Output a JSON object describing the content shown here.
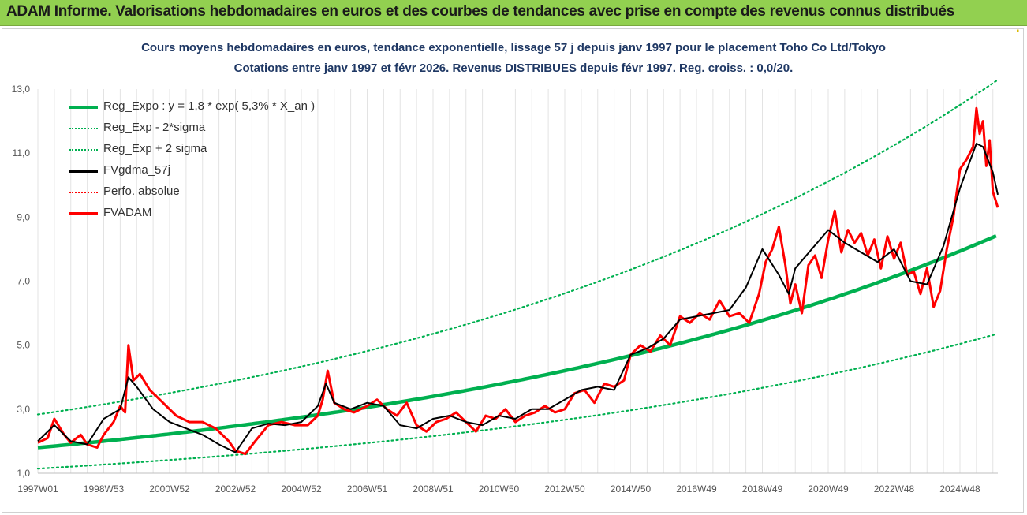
{
  "banner": {
    "title": "ADAM Informe. Valorisations hebdomadaires en euros et des courbes de tendances avec prise en compte des revenus connus distribués"
  },
  "chart_data": {
    "type": "line",
    "title": "Cours moyens hebdomadaires en euros, tendance exponentielle, lissage 57 j depuis janv 1997  pour le placement Toho Co Ltd/Tokyo",
    "subtitle": "Cotations entre janv 1997 et févr 2026. Revenus DISTRIBUES depuis févr 1997.  Reg. croiss. : 0,0/20.",
    "xlabel": "",
    "ylabel": "",
    "x_range": [
      1997.0,
      2026.15
    ],
    "ylim": [
      1.0,
      13.0
    ],
    "y_ticks": [
      "1,0",
      "3,0",
      "5,0",
      "7,0",
      "9,0",
      "11,0",
      "13,0"
    ],
    "y_tick_values": [
      1,
      3,
      5,
      7,
      9,
      11,
      13
    ],
    "x_tick_labels": [
      "1997W01",
      "1998W53",
      "2000W52",
      "2002W52",
      "2004W52",
      "2006W51",
      "2008W51",
      "2010W50",
      "2012W50",
      "2014W50",
      "2016W49",
      "2018W49",
      "2020W49",
      "2022W48",
      "2024W48"
    ],
    "x_tick_positions": [
      1997.0,
      1999.0,
      2001.0,
      2003.0,
      2005.0,
      2007.0,
      2009.0,
      2011.0,
      2013.0,
      2015.0,
      2017.0,
      2019.0,
      2021.0,
      2023.0,
      2025.0
    ],
    "grid": "vertical",
    "legend_position": "top-left",
    "colors": {
      "green": "#00b050",
      "black": "#000000",
      "red": "#ff0000"
    },
    "series": [
      {
        "name": "Reg_Expo : y = 1,8 * exp( 5,3% *  X_an )",
        "style": "solid-thick",
        "color": "#00b050",
        "regression": {
          "a": 1.8,
          "b": 0.053,
          "factor": 1.0
        }
      },
      {
        "name": "Reg_Exp - 2*sigma",
        "style": "dotted",
        "color": "#00b050",
        "regression": {
          "a": 1.8,
          "b": 0.053,
          "factor": 0.635
        }
      },
      {
        "name": "Reg_Exp + 2 sigma",
        "style": "dotted",
        "color": "#00b050",
        "regression": {
          "a": 1.8,
          "b": 0.053,
          "factor": 1.575
        }
      },
      {
        "name": "FVgdma_57j",
        "style": "solid",
        "color": "#000000",
        "x": [
          1997.0,
          1997.5,
          1998.0,
          1998.5,
          1999.0,
          1999.5,
          1999.75,
          2000.0,
          2000.5,
          2001.0,
          2001.5,
          2002.0,
          2002.5,
          2003.0,
          2003.5,
          2004.0,
          2004.5,
          2005.0,
          2005.5,
          2005.75,
          2006.0,
          2006.5,
          2007.0,
          2007.5,
          2008.0,
          2008.5,
          2009.0,
          2009.5,
          2010.0,
          2010.5,
          2011.0,
          2011.5,
          2012.0,
          2012.5,
          2013.0,
          2013.5,
          2014.0,
          2014.5,
          2015.0,
          2015.5,
          2016.0,
          2016.5,
          2017.0,
          2017.5,
          2018.0,
          2018.5,
          2019.0,
          2019.5,
          2019.8,
          2020.0,
          2020.5,
          2021.0,
          2021.5,
          2022.0,
          2022.5,
          2023.0,
          2023.5,
          2024.0,
          2024.5,
          2025.0,
          2025.5,
          2025.7,
          2026.0,
          2026.15
        ],
        "values": [
          2.0,
          2.5,
          2.0,
          1.9,
          2.7,
          3.0,
          4.0,
          3.7,
          3.0,
          2.6,
          2.4,
          2.2,
          1.9,
          1.65,
          2.4,
          2.55,
          2.5,
          2.6,
          3.1,
          3.8,
          3.2,
          3.0,
          3.2,
          3.1,
          2.5,
          2.4,
          2.7,
          2.8,
          2.6,
          2.5,
          2.8,
          2.7,
          3.0,
          3.0,
          3.3,
          3.6,
          3.7,
          3.6,
          4.7,
          4.9,
          5.2,
          5.8,
          5.9,
          6.0,
          6.1,
          6.8,
          8.0,
          7.2,
          6.6,
          7.4,
          8.0,
          8.6,
          8.2,
          7.9,
          7.6,
          8.0,
          7.0,
          6.9,
          8.1,
          9.9,
          11.3,
          11.2,
          10.4,
          9.7
        ]
      },
      {
        "name": "Perfo. absolue",
        "style": "dotted",
        "color": "#ff0000",
        "values": []
      },
      {
        "name": "FVADAM",
        "style": "solid-thick",
        "color": "#ff0000",
        "x": [
          1997.0,
          1997.3,
          1997.5,
          1997.8,
          1998.0,
          1998.3,
          1998.5,
          1998.8,
          1999.0,
          1999.3,
          1999.5,
          1999.65,
          1999.75,
          1999.9,
          2000.1,
          2000.4,
          2000.8,
          2001.2,
          2001.6,
          2002.0,
          2002.4,
          2002.8,
          2003.0,
          2003.3,
          2003.6,
          2004.0,
          2004.4,
          2004.8,
          2005.2,
          2005.5,
          2005.65,
          2005.8,
          2006.0,
          2006.3,
          2006.6,
          2007.0,
          2007.3,
          2007.6,
          2007.9,
          2008.2,
          2008.5,
          2008.8,
          2009.1,
          2009.4,
          2009.7,
          2010.0,
          2010.3,
          2010.6,
          2010.9,
          2011.2,
          2011.5,
          2011.8,
          2012.1,
          2012.4,
          2012.7,
          2013.0,
          2013.3,
          2013.6,
          2013.9,
          2014.2,
          2014.5,
          2014.8,
          2015.0,
          2015.3,
          2015.6,
          2015.9,
          2016.2,
          2016.5,
          2016.8,
          2017.1,
          2017.4,
          2017.7,
          2018.0,
          2018.3,
          2018.6,
          2018.9,
          2019.1,
          2019.3,
          2019.5,
          2019.7,
          2019.85,
          2020.0,
          2020.2,
          2020.4,
          2020.6,
          2020.8,
          2021.0,
          2021.2,
          2021.4,
          2021.6,
          2021.8,
          2022.0,
          2022.2,
          2022.4,
          2022.6,
          2022.8,
          2023.0,
          2023.2,
          2023.4,
          2023.6,
          2023.8,
          2024.0,
          2024.2,
          2024.4,
          2024.6,
          2024.8,
          2025.0,
          2025.2,
          2025.4,
          2025.5,
          2025.6,
          2025.7,
          2025.8,
          2025.9,
          2026.0,
          2026.15
        ],
        "values": [
          1.95,
          2.1,
          2.7,
          2.2,
          1.95,
          2.2,
          1.9,
          1.8,
          2.2,
          2.6,
          3.1,
          2.9,
          5.0,
          3.9,
          4.1,
          3.6,
          3.2,
          2.8,
          2.6,
          2.6,
          2.4,
          2.0,
          1.7,
          1.6,
          2.0,
          2.5,
          2.6,
          2.5,
          2.5,
          2.8,
          3.3,
          4.2,
          3.2,
          3.0,
          2.9,
          3.1,
          3.3,
          3.0,
          2.8,
          3.2,
          2.5,
          2.3,
          2.6,
          2.7,
          2.9,
          2.6,
          2.3,
          2.8,
          2.7,
          3.0,
          2.6,
          2.8,
          2.9,
          3.1,
          2.9,
          3.0,
          3.5,
          3.6,
          3.2,
          3.8,
          3.7,
          3.9,
          4.7,
          5.0,
          4.8,
          5.3,
          5.0,
          5.9,
          5.7,
          6.0,
          5.8,
          6.4,
          5.9,
          6.0,
          5.7,
          6.6,
          7.6,
          8.0,
          8.7,
          7.5,
          6.3,
          6.9,
          6.0,
          7.5,
          7.8,
          7.1,
          8.3,
          9.2,
          7.9,
          8.6,
          8.2,
          8.5,
          7.8,
          8.3,
          7.4,
          8.4,
          7.7,
          8.2,
          7.2,
          7.3,
          6.6,
          7.4,
          6.2,
          6.7,
          8.0,
          9.0,
          10.5,
          10.8,
          11.2,
          12.4,
          11.6,
          12.0,
          10.6,
          11.4,
          9.8,
          9.3
        ]
      }
    ]
  }
}
